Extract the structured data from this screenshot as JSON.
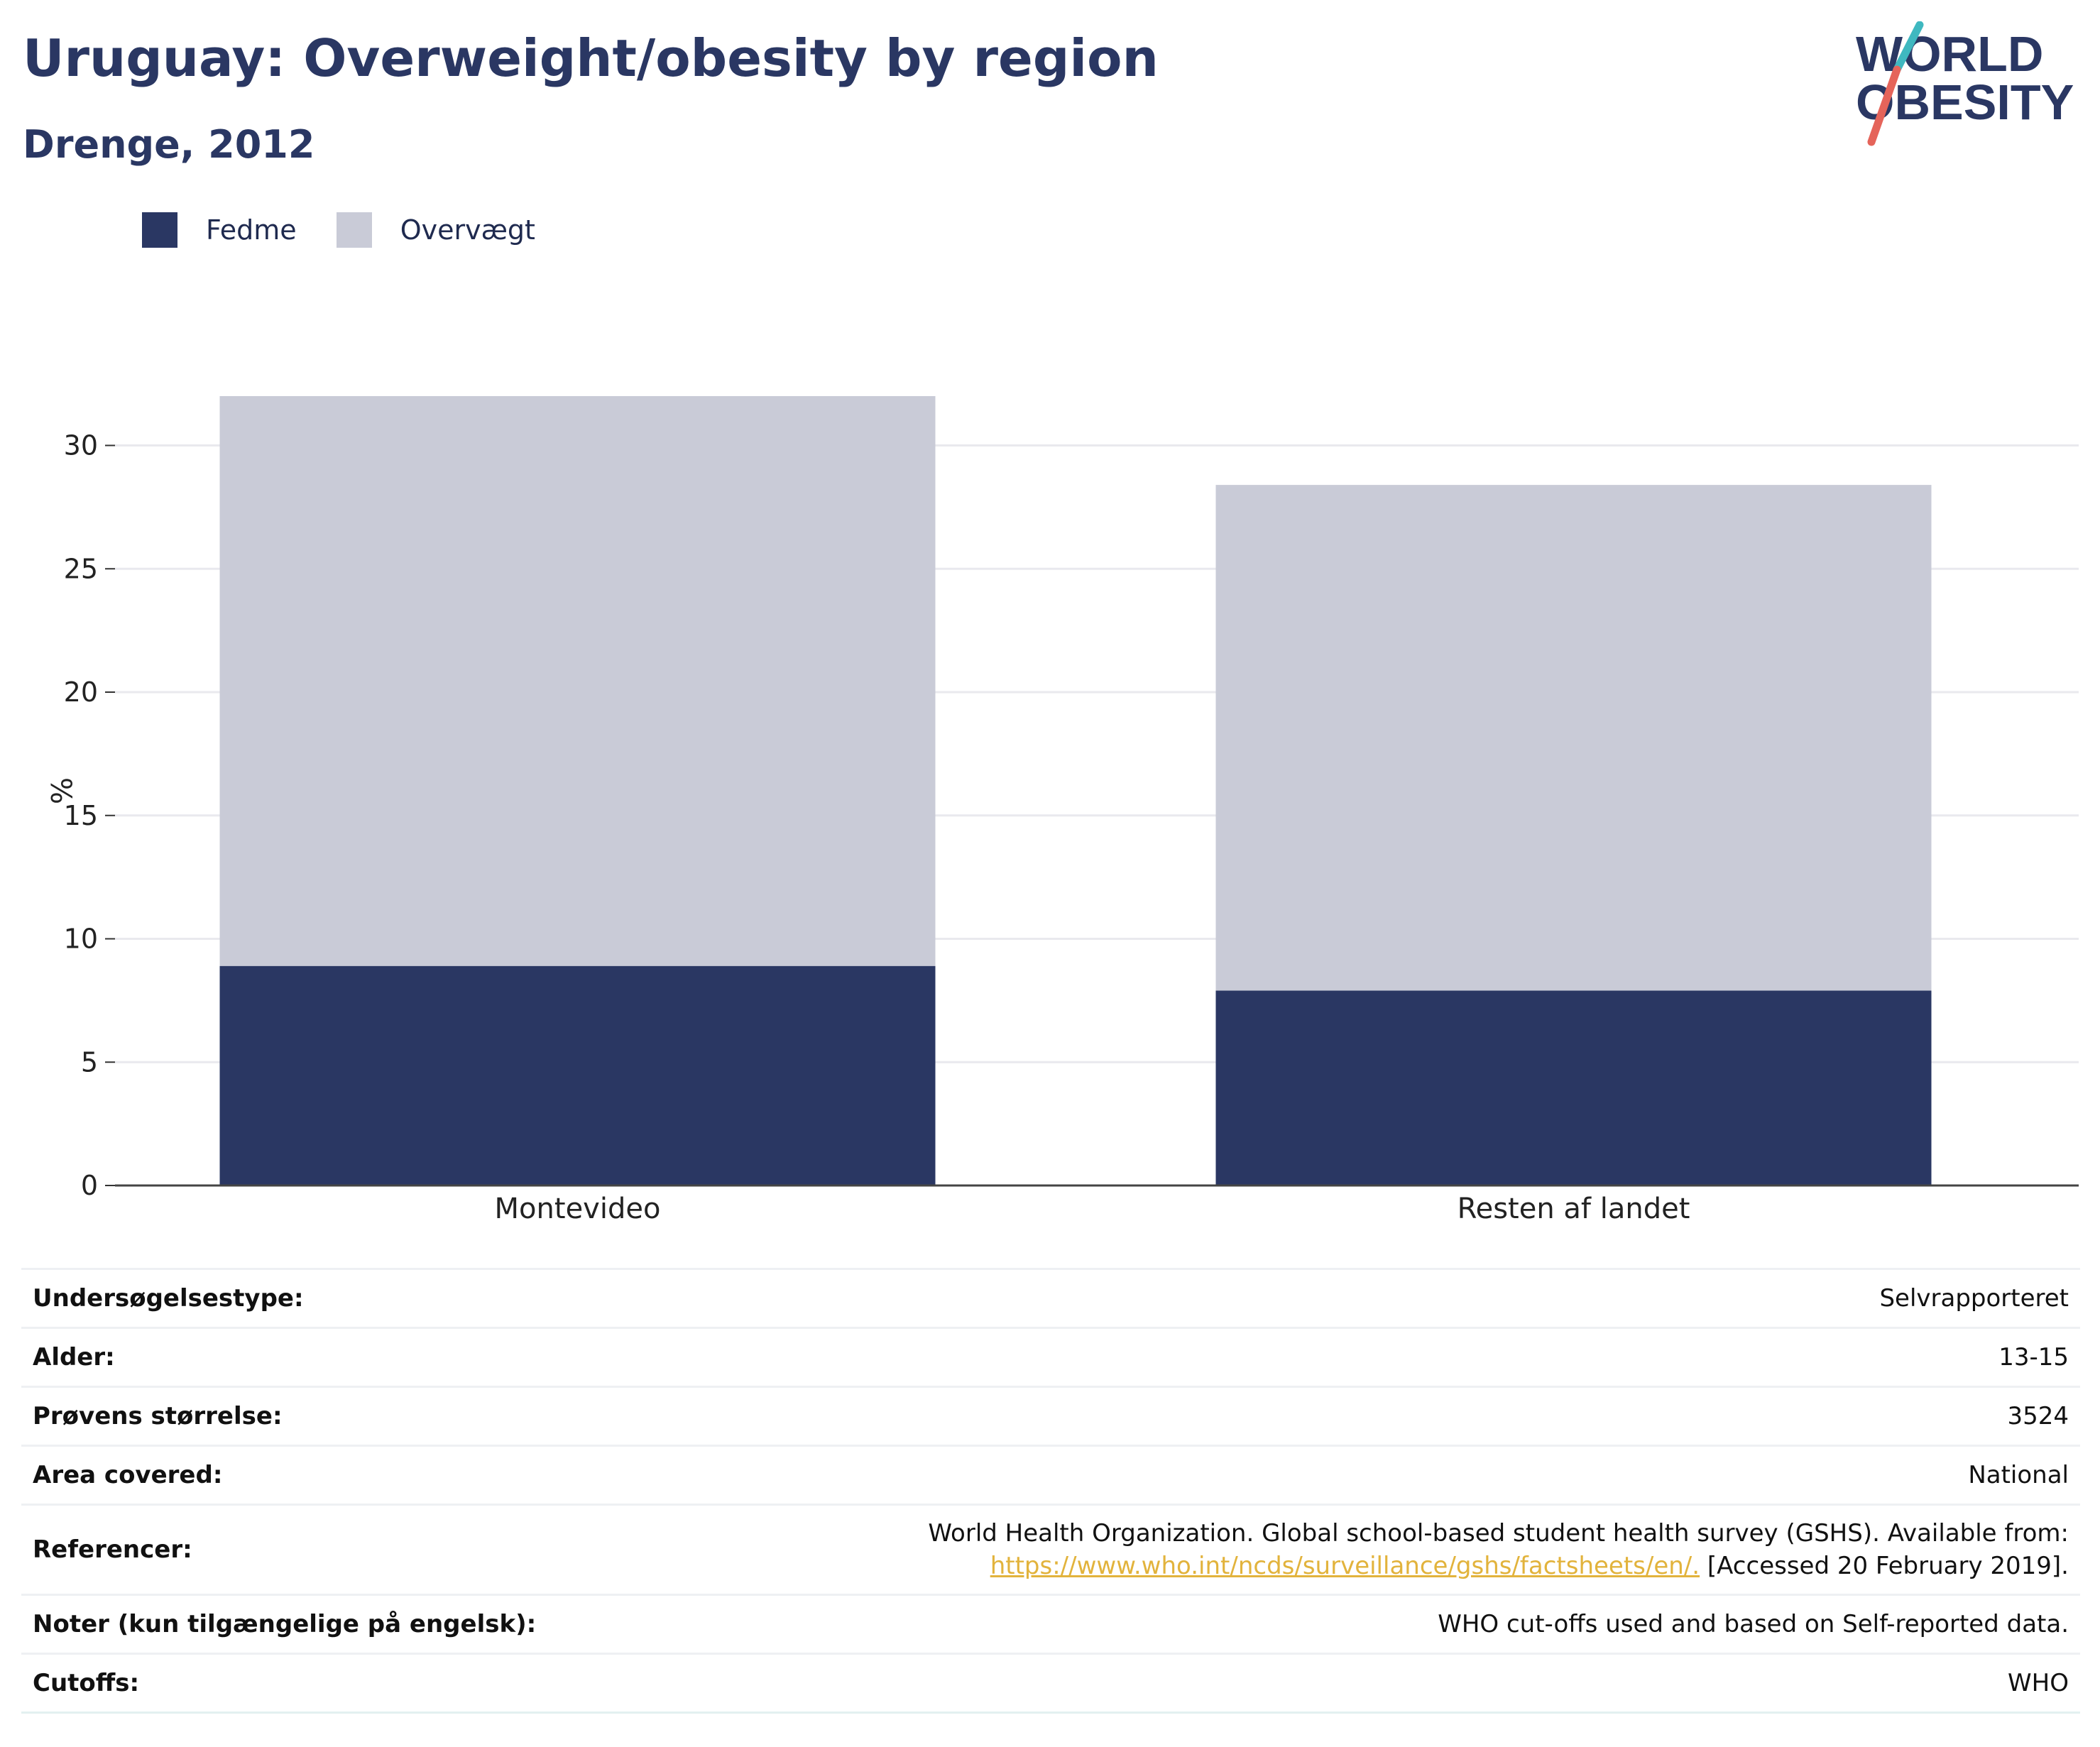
{
  "header": {
    "title": "Uruguay: Overweight/obesity by region",
    "subtitle": "Drenge, 2012"
  },
  "logo": {
    "line1": "WORLD",
    "line2": "OBESITY",
    "colors": {
      "text": "#2a3763",
      "slash_top": "#3fb8c0",
      "slash_bottom": "#e5645a"
    }
  },
  "legend": [
    {
      "label": "Fedme",
      "color": "#2a3763"
    },
    {
      "label": "Overvægt",
      "color": "#c9cbd7"
    }
  ],
  "chart_data": {
    "type": "bar",
    "stacked": true,
    "categories": [
      "Montevideo",
      "Resten af landet"
    ],
    "series": [
      {
        "name": "Fedme",
        "values": [
          8.9,
          7.9
        ],
        "color": "#2a3763"
      },
      {
        "name": "Overvægt",
        "values": [
          23.1,
          20.5
        ],
        "color": "#c9cbd7"
      }
    ],
    "ylabel": "%",
    "ylim": [
      0,
      32
    ],
    "yticks": [
      0,
      5,
      10,
      15,
      20,
      25,
      30
    ],
    "grid": true
  },
  "info": {
    "survey_type_label": "Undersøgelsestype:",
    "survey_type_value": "Selvrapporteret",
    "age_label": "Alder:",
    "age_value": "13-15",
    "sample_label": "Prøvens størrelse:",
    "sample_value": "3524",
    "area_label": "Area covered:",
    "area_value": "National",
    "references_label": "Referencer:",
    "references_text": "World Health Organization. Global school-based student health survey (GSHS). Available from:",
    "references_link": "https://www.who.int/ncds/surveillance/gshs/factsheets/en/.",
    "references_accessed": " [Accessed 20 February 2019].",
    "notes_label": "Noter (kun tilgængelige på engelsk):",
    "notes_value": "WHO cut-offs used and based on Self-reported data.",
    "cutoffs_label": "Cutoffs:",
    "cutoffs_value": "WHO"
  }
}
